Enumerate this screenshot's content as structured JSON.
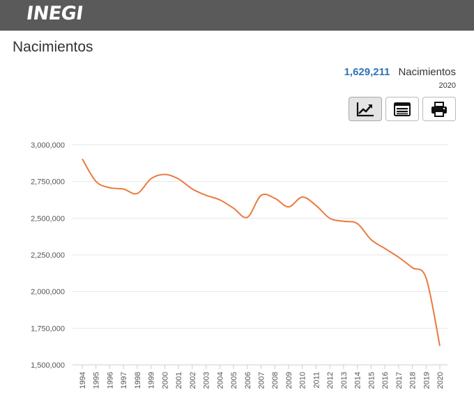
{
  "header": {
    "logo_text": "INEGI",
    "bar_color": "#5a5a5a"
  },
  "page": {
    "title": "Nacimientos"
  },
  "summary": {
    "value": "1,629,211",
    "label": "Nacimientos",
    "year": "2020",
    "value_color": "#2f73b5"
  },
  "toolbar": {
    "buttons": [
      {
        "icon": "line-chart-icon",
        "active": true
      },
      {
        "icon": "table-icon",
        "active": false
      },
      {
        "icon": "print-icon",
        "active": false
      }
    ]
  },
  "chart_data": {
    "type": "line",
    "x": [
      "1994",
      "1995",
      "1996",
      "1997",
      "1998",
      "1999",
      "2000",
      "2001",
      "2002",
      "2003",
      "2004",
      "2005",
      "2006",
      "2007",
      "2008",
      "2009",
      "2010",
      "2011",
      "2012",
      "2013",
      "2014",
      "2015",
      "2016",
      "2017",
      "2018",
      "2019",
      "2020"
    ],
    "series": [
      {
        "values": [
          2904389,
          2750444,
          2707718,
          2698425,
          2668428,
          2769089,
          2798339,
          2767610,
          2699084,
          2655894,
          2625056,
          2567906,
          2505939,
          2655083,
          2636110,
          2577214,
          2643908,
          2586287,
          2498880,
          2478889,
          2463420,
          2353596,
          2293708,
          2234039,
          2162535,
          2092214,
          1629211
        ],
        "color": "#ea7a3d"
      }
    ],
    "ylim": [
      1500000,
      3000000
    ],
    "yticks": [
      "1,500,000",
      "1,750,000",
      "2,000,000",
      "2,250,000",
      "2,500,000",
      "2,750,000",
      "3,000,000"
    ],
    "grid": true
  }
}
